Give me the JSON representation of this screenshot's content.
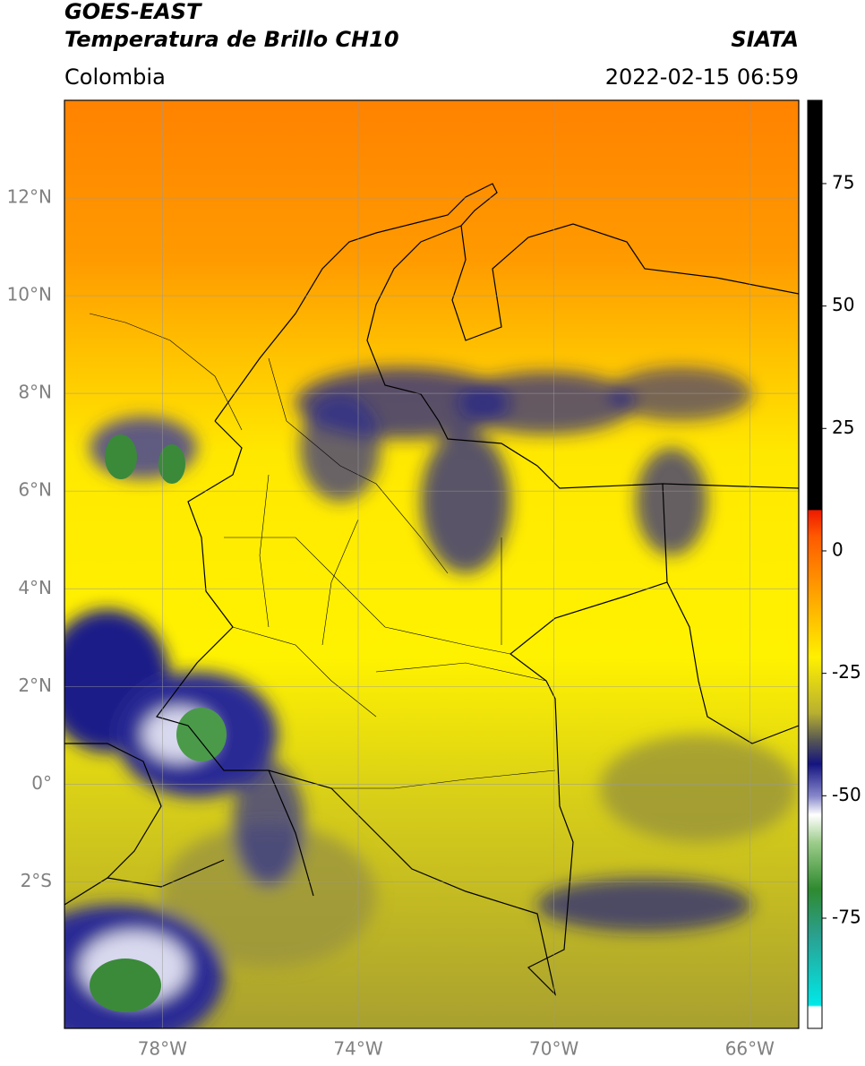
{
  "header": {
    "line1": "GOES-EAST",
    "line2": "Temperatura de Brillo CH10",
    "source": "SIATA",
    "region": "Colombia",
    "datetime": "2022-02-15 06:59"
  },
  "map": {
    "xlim": [
      -80,
      -65
    ],
    "ylim": [
      -5,
      14
    ],
    "lat_ticks": [
      {
        "value": 12,
        "label": "12°N"
      },
      {
        "value": 10,
        "label": "10°N"
      },
      {
        "value": 8,
        "label": "8°N"
      },
      {
        "value": 6,
        "label": "6°N"
      },
      {
        "value": 4,
        "label": "4°N"
      },
      {
        "value": 2,
        "label": "2°N"
      },
      {
        "value": 0,
        "label": "0°"
      },
      {
        "value": -2,
        "label": "2°S"
      }
    ],
    "lon_ticks": [
      {
        "value": -78,
        "label": "78°W"
      },
      {
        "value": -74,
        "label": "74°W"
      },
      {
        "value": -70,
        "label": "70°W"
      },
      {
        "value": -66,
        "label": "66°W"
      }
    ]
  },
  "colorbar": {
    "lim": [
      -97.5,
      92
    ],
    "ticks": [
      75,
      50,
      25,
      0,
      -25,
      -50,
      -75
    ]
  }
}
